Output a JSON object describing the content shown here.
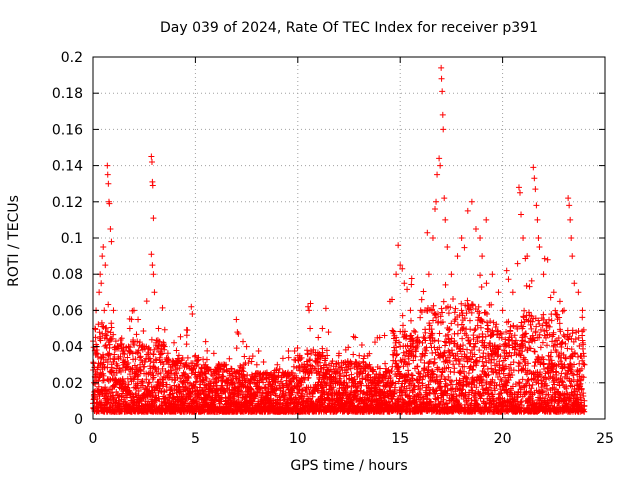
{
  "chart_data": {
    "type": "scatter",
    "title": "Day 039 of 2024, Rate Of TEC Index for receiver p391",
    "xlabel": "GPS time / hours",
    "ylabel": "ROTI / TECUs",
    "xlim": [
      0,
      25
    ],
    "ylim": [
      0,
      0.2
    ],
    "xticks": [
      "0",
      "5",
      "10",
      "15",
      "20",
      "25"
    ],
    "yticks": [
      "0",
      "0.02",
      "0.04",
      "0.06",
      "0.08",
      "0.1",
      "0.12",
      "0.14",
      "0.16",
      "0.18",
      "0.2"
    ],
    "xtick_values": [
      0,
      5,
      10,
      15,
      20,
      25
    ],
    "ytick_values": [
      0,
      0.02,
      0.04,
      0.06,
      0.08,
      0.1,
      0.12,
      0.14,
      0.16,
      0.18,
      0.2
    ],
    "grid": true,
    "marker": "+",
    "color": "#ff0000",
    "x_data_range": [
      0,
      24
    ],
    "series": [
      {
        "points": [
          [
            0.05,
            0.02
          ],
          [
            0.1,
            0.05
          ],
          [
            0.15,
            0.06
          ],
          [
            0.2,
            0.04
          ],
          [
            0.3,
            0.07
          ],
          [
            0.35,
            0.08
          ],
          [
            0.4,
            0.075
          ],
          [
            0.45,
            0.09
          ],
          [
            0.5,
            0.095
          ],
          [
            0.55,
            0.06
          ],
          [
            0.6,
            0.085
          ],
          [
            0.7,
            0.14
          ],
          [
            0.72,
            0.135
          ],
          [
            0.75,
            0.13
          ],
          [
            0.78,
            0.12
          ],
          [
            0.8,
            0.119
          ],
          [
            0.85,
            0.105
          ],
          [
            0.9,
            0.098
          ],
          [
            1.0,
            0.06
          ],
          [
            1.2,
            0.04
          ],
          [
            1.5,
            0.03
          ],
          [
            1.8,
            0.05
          ],
          [
            2.0,
            0.06
          ],
          [
            2.2,
            0.055
          ],
          [
            2.5,
            0.04
          ],
          [
            2.85,
            0.145
          ],
          [
            2.88,
            0.142
          ],
          [
            2.9,
            0.131
          ],
          [
            2.92,
            0.129
          ],
          [
            2.95,
            0.111
          ],
          [
            2.85,
            0.091
          ],
          [
            2.9,
            0.085
          ],
          [
            2.95,
            0.08
          ],
          [
            3.0,
            0.07
          ],
          [
            3.2,
            0.05
          ],
          [
            3.5,
            0.04
          ],
          [
            4.0,
            0.03
          ],
          [
            4.5,
            0.025
          ],
          [
            4.8,
            0.062
          ],
          [
            4.85,
            0.058
          ],
          [
            5.0,
            0.035
          ],
          [
            5.5,
            0.03
          ],
          [
            6.0,
            0.025
          ],
          [
            6.5,
            0.03
          ],
          [
            7.0,
            0.055
          ],
          [
            7.05,
            0.048
          ],
          [
            7.1,
            0.047
          ],
          [
            7.5,
            0.04
          ],
          [
            8.0,
            0.03
          ],
          [
            8.5,
            0.025
          ],
          [
            9.0,
            0.03
          ],
          [
            9.5,
            0.025
          ],
          [
            10.0,
            0.035
          ],
          [
            10.5,
            0.062
          ],
          [
            10.55,
            0.06
          ],
          [
            10.6,
            0.05
          ],
          [
            11.0,
            0.045
          ],
          [
            11.2,
            0.05
          ],
          [
            11.5,
            0.048
          ],
          [
            12.0,
            0.035
          ],
          [
            12.5,
            0.03
          ],
          [
            12.8,
            0.045
          ],
          [
            13.0,
            0.035
          ],
          [
            13.5,
            0.03
          ],
          [
            14.0,
            0.045
          ],
          [
            14.5,
            0.065
          ],
          [
            14.6,
            0.066
          ],
          [
            14.8,
            0.08
          ],
          [
            14.9,
            0.096
          ],
          [
            15.0,
            0.085
          ],
          [
            15.1,
            0.083
          ],
          [
            15.2,
            0.075
          ],
          [
            15.5,
            0.06
          ],
          [
            16.0,
            0.06
          ],
          [
            16.4,
            0.08
          ],
          [
            16.6,
            0.1
          ],
          [
            16.7,
            0.116
          ],
          [
            16.75,
            0.12
          ],
          [
            16.8,
            0.135
          ],
          [
            16.9,
            0.144
          ],
          [
            16.95,
            0.14
          ],
          [
            17.0,
            0.194
          ],
          [
            17.02,
            0.188
          ],
          [
            17.05,
            0.181
          ],
          [
            17.08,
            0.168
          ],
          [
            17.1,
            0.16
          ],
          [
            17.15,
            0.122
          ],
          [
            17.2,
            0.11
          ],
          [
            17.3,
            0.095
          ],
          [
            17.5,
            0.08
          ],
          [
            17.8,
            0.09
          ],
          [
            18.0,
            0.1
          ],
          [
            18.3,
            0.115
          ],
          [
            18.5,
            0.12
          ],
          [
            18.7,
            0.105
          ],
          [
            18.9,
            0.1
          ],
          [
            19.0,
            0.09
          ],
          [
            19.2,
            0.11
          ],
          [
            19.5,
            0.08
          ],
          [
            19.8,
            0.07
          ],
          [
            20.0,
            0.06
          ],
          [
            20.2,
            0.082
          ],
          [
            20.5,
            0.07
          ],
          [
            20.8,
            0.128
          ],
          [
            20.85,
            0.125
          ],
          [
            20.9,
            0.113
          ],
          [
            21.0,
            0.1
          ],
          [
            21.2,
            0.09
          ],
          [
            21.5,
            0.139
          ],
          [
            21.55,
            0.133
          ],
          [
            21.6,
            0.127
          ],
          [
            21.65,
            0.118
          ],
          [
            21.7,
            0.11
          ],
          [
            21.75,
            0.1
          ],
          [
            21.8,
            0.095
          ],
          [
            22.0,
            0.08
          ],
          [
            22.2,
            0.088
          ],
          [
            22.5,
            0.07
          ],
          [
            22.8,
            0.065
          ],
          [
            23.0,
            0.06
          ],
          [
            23.2,
            0.122
          ],
          [
            23.25,
            0.118
          ],
          [
            23.3,
            0.11
          ],
          [
            23.35,
            0.1
          ],
          [
            23.4,
            0.09
          ],
          [
            23.5,
            0.075
          ],
          [
            23.7,
            0.07
          ],
          [
            23.9,
            0.06
          ],
          [
            24.0,
            0.03
          ]
        ]
      }
    ]
  }
}
